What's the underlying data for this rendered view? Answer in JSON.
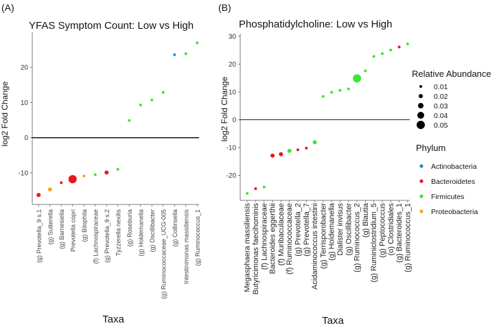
{
  "chart_data": [
    {
      "type": "scatter",
      "panel_label": "(A)",
      "title": "YFAS Symptom Count: Low vs High",
      "xlabel": "Taxa",
      "ylabel": "log2 Fold Change",
      "ylim": [
        -19,
        30
      ],
      "yticks": [
        -10,
        0,
        10,
        20
      ],
      "grid": false,
      "points": [
        {
          "taxon": "(g) Prevotella_9 s.1",
          "y": -16.3,
          "phylum": "Bacteroidetes",
          "abundance": 0.02
        },
        {
          "taxon": "(g) Sutterella",
          "y": -14.7,
          "phylum": "Proteobacteria",
          "abundance": 0.02
        },
        {
          "taxon": "(g) Barnesiella",
          "y": -12.8,
          "phylum": "Bacteroidetes",
          "abundance": 0.01
        },
        {
          "taxon": "Prevotella copri",
          "y": -11.8,
          "phylum": "Bacteroidetes",
          "abundance": 0.05
        },
        {
          "taxon": "(g) Bilophila",
          "y": -10.9,
          "phylum": "Proteobacteria",
          "abundance": 0.01
        },
        {
          "taxon": "(f) Lachnospiraceae",
          "y": -10.5,
          "phylum": "Firmicutes",
          "abundance": 0.01
        },
        {
          "taxon": "(g) Prevotella_9 s.2",
          "y": -9.9,
          "phylum": "Bacteroidetes",
          "abundance": 0.02
        },
        {
          "taxon": "Tyzzerella nexilis",
          "y": -9.0,
          "phylum": "Firmicutes",
          "abundance": 0.01
        },
        {
          "taxon": "(g) Roseburia",
          "y": 4.9,
          "phylum": "Firmicutes",
          "abundance": 0.01
        },
        {
          "taxon": "(g) Holdemanella",
          "y": 9.3,
          "phylum": "Firmicutes",
          "abundance": 0.01
        },
        {
          "taxon": "(g) Oscillibacter",
          "y": 10.7,
          "phylum": "Firmicutes",
          "abundance": 0.01
        },
        {
          "taxon": "(g) Ruminococcaceae_UCG-005",
          "y": 12.9,
          "phylum": "Firmicutes",
          "abundance": 0.01
        },
        {
          "taxon": "(g) Collinsella",
          "y": 23.6,
          "phylum": "Actinobacteria",
          "abundance": 0.01
        },
        {
          "taxon": "Intestinimonas massiliensis",
          "y": 23.9,
          "phylum": "Firmicutes",
          "abundance": 0.01
        },
        {
          "taxon": "(g) Ruminococcus_1",
          "y": 27.0,
          "phylum": "Firmicutes",
          "abundance": 0.01
        }
      ]
    },
    {
      "type": "scatter",
      "panel_label": "(B)",
      "title": "Phosphatidylcholine: Low vs High",
      "xlabel": "Taxa",
      "ylabel": "log2 Fold Change",
      "ylim": [
        -29,
        31
      ],
      "yticks": [
        -20,
        -10,
        0,
        10,
        20,
        30
      ],
      "grid": false,
      "points": [
        {
          "taxon": "Megasphaera massiliensis",
          "y": -26.5,
          "phylum": "Firmicutes",
          "abundance": 0.01
        },
        {
          "taxon": "Butyricimonas faecihominis",
          "y": -24.8,
          "phylum": "Bacteroidetes",
          "abundance": 0.01
        },
        {
          "taxon": "(f) Lachnospiraceae",
          "y": -24.2,
          "phylum": "Firmicutes",
          "abundance": 0.01
        },
        {
          "taxon": "Bacteroides eggerthii",
          "y": -12.9,
          "phylum": "Bacteroidetes",
          "abundance": 0.02
        },
        {
          "taxon": "(f) Muribaculaceae",
          "y": -12.4,
          "phylum": "Bacteroidetes",
          "abundance": 0.02
        },
        {
          "taxon": "(f) Ruminococcaceae",
          "y": -11.2,
          "phylum": "Firmicutes",
          "abundance": 0.02
        },
        {
          "taxon": "(g) Prevotella_2",
          "y": -10.8,
          "phylum": "Bacteroidetes",
          "abundance": 0.01
        },
        {
          "taxon": "(g) Prevotella_7",
          "y": -10.2,
          "phylum": "Bacteroidetes",
          "abundance": 0.01
        },
        {
          "taxon": "Acidaminococcus intestini",
          "y": -8.1,
          "phylum": "Firmicutes",
          "abundance": 0.02
        },
        {
          "taxon": "(g) Terrisporobacter",
          "y": 8.4,
          "phylum": "Firmicutes",
          "abundance": 0.01
        },
        {
          "taxon": "(g) Holdemanella",
          "y": 9.9,
          "phylum": "Firmicutes",
          "abundance": 0.01
        },
        {
          "taxon": "Dialister invisus",
          "y": 10.6,
          "phylum": "Firmicutes",
          "abundance": 0.01
        },
        {
          "taxon": "(g) Oscillibacter",
          "y": 11.1,
          "phylum": "Firmicutes",
          "abundance": 0.01
        },
        {
          "taxon": "(g) Ruminococcus_2",
          "y": 14.9,
          "phylum": "Firmicutes",
          "abundance": 0.05
        },
        {
          "taxon": "(g) Blautia",
          "y": 17.6,
          "phylum": "Firmicutes",
          "abundance": 0.01
        },
        {
          "taxon": "(g) Ruminiclostridium_5",
          "y": 22.8,
          "phylum": "Firmicutes",
          "abundance": 0.01
        },
        {
          "taxon": "(g) Peptococcus",
          "y": 23.8,
          "phylum": "Firmicutes",
          "abundance": 0.01
        },
        {
          "taxon": "(o) Clostridiales",
          "y": 25.1,
          "phylum": "Firmicutes",
          "abundance": 0.01
        },
        {
          "taxon": "(g) Bacteroides_1",
          "y": 26.2,
          "phylum": "Bacteroidetes",
          "abundance": 0.01
        },
        {
          "taxon": "(g) Ruminococcus_1",
          "y": 27.3,
          "phylum": "Firmicutes",
          "abundance": 0.01
        }
      ]
    }
  ],
  "legend": {
    "placement": "right",
    "size_title": "Relative  Abundance",
    "sizes": [
      {
        "label": "0.01",
        "value": 0.01
      },
      {
        "label": "0.02",
        "value": 0.02
      },
      {
        "label": "0.03",
        "value": 0.03
      },
      {
        "label": "0.04",
        "value": 0.04
      },
      {
        "label": "0.05",
        "value": 0.05
      }
    ],
    "color_title": "Phylum",
    "colors": [
      {
        "label": "Actinobacteria",
        "color": "#1e90d6"
      },
      {
        "label": "Bacteroidetes",
        "color": "#e8181f"
      },
      {
        "label": "Firmicutes",
        "color": "#3ce635"
      },
      {
        "label": "Proteobacteria",
        "color": "#f5a623"
      }
    ]
  }
}
